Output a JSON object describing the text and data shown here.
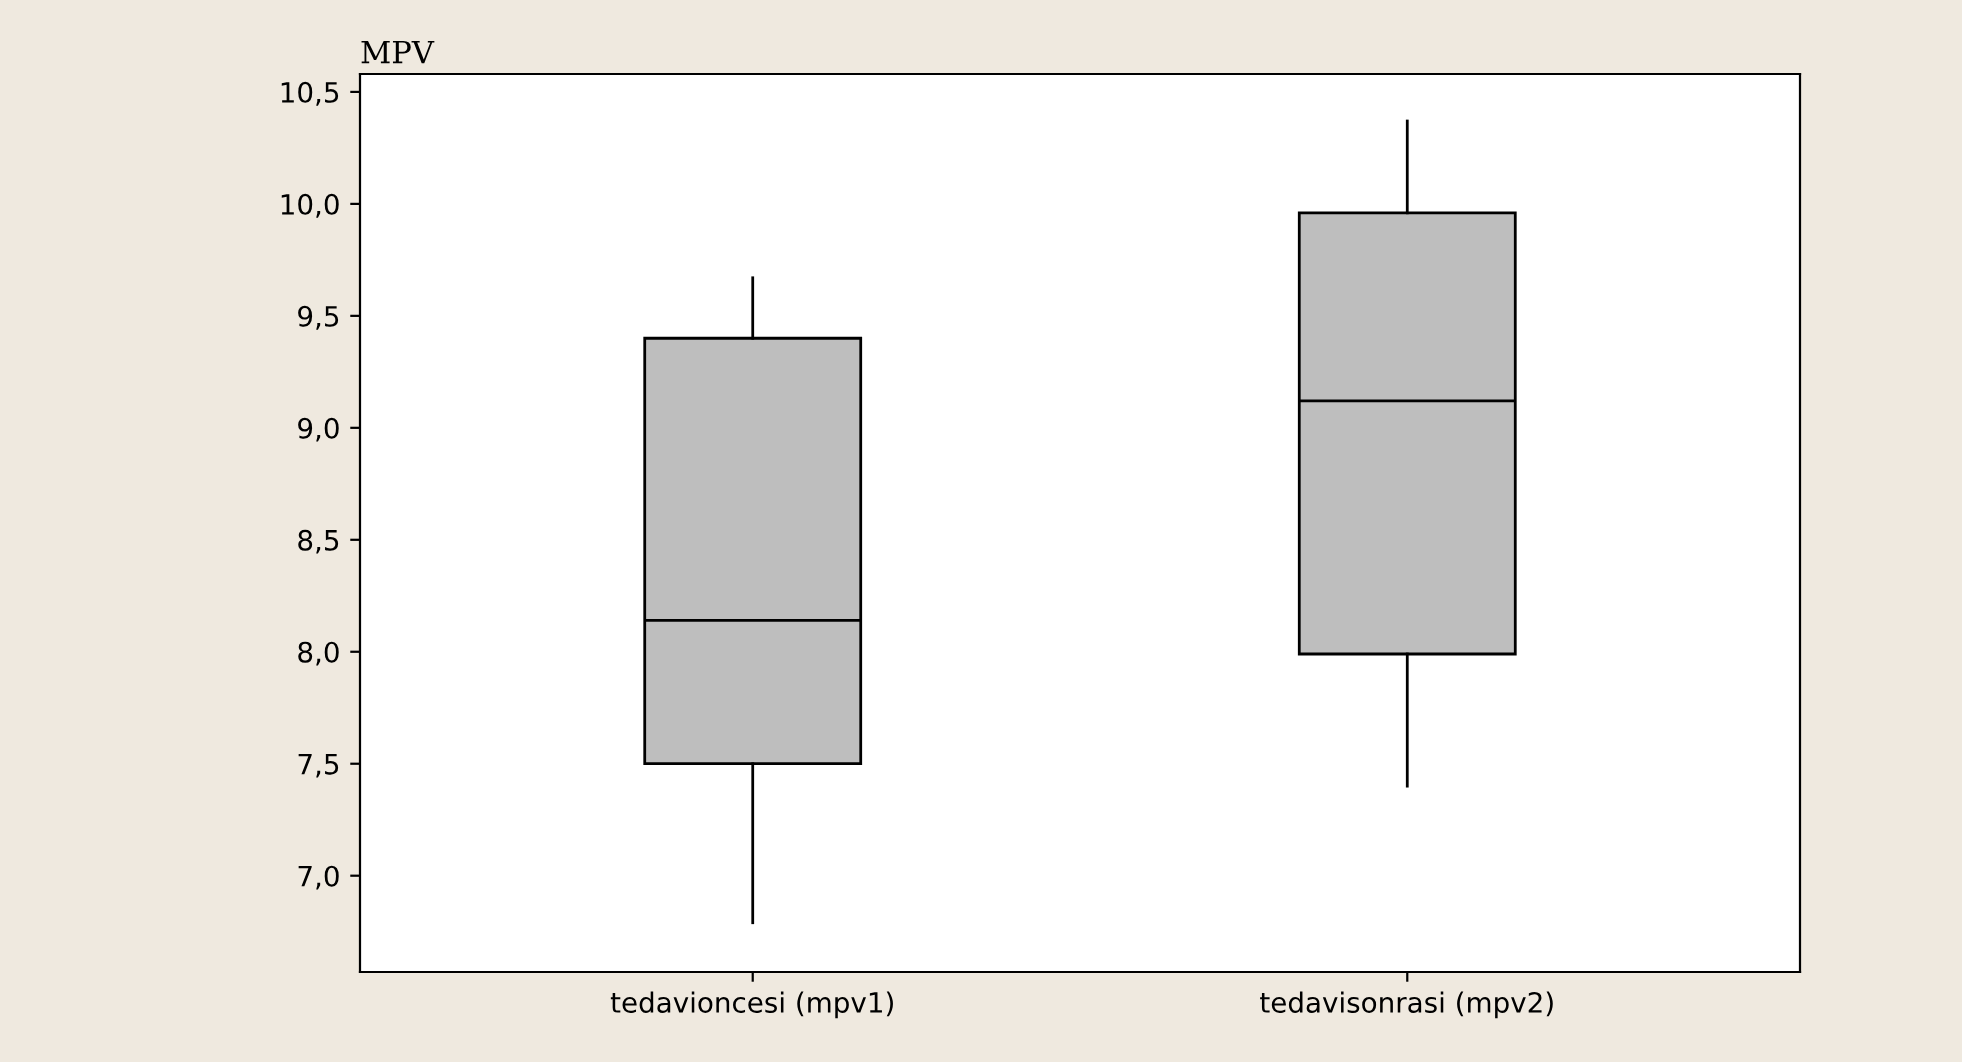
{
  "chart_data": {
    "type": "box",
    "ylabel": "MPV",
    "categories": [
      "tedavioncesi (mpv1)",
      "tedavisonrasi (mpv2)"
    ],
    "boxes": [
      {
        "low": 6.79,
        "q1": 7.5,
        "median": 8.14,
        "q3": 9.4,
        "high": 9.67
      },
      {
        "low": 7.4,
        "q1": 7.99,
        "median": 9.12,
        "q3": 9.96,
        "high": 10.37
      }
    ],
    "color": "#bebebe",
    "ylim": [
      6.57,
      10.58
    ],
    "yticks": [
      {
        "value": 7.0,
        "label": "7,0"
      },
      {
        "value": 7.5,
        "label": "7,5"
      },
      {
        "value": 8.0,
        "label": "8,0"
      },
      {
        "value": 8.5,
        "label": "8,5"
      },
      {
        "value": 9.0,
        "label": "9,0"
      },
      {
        "value": 9.5,
        "label": "9,5"
      },
      {
        "value": 10.0,
        "label": "10,0"
      },
      {
        "value": 10.5,
        "label": "10,5"
      }
    ],
    "grid": false
  }
}
